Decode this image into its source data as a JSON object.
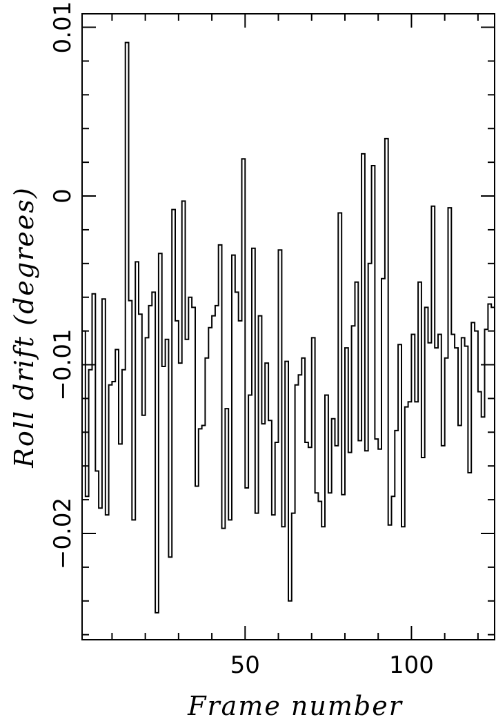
{
  "chart_data": {
    "type": "line",
    "style": "step",
    "title": "",
    "xlabel": "Frame number",
    "ylabel": "Roll drift (degrees)",
    "xlim": [
      1,
      125
    ],
    "ylim": [
      -0.0263,
      0.0108
    ],
    "x_ticks": [
      50,
      100
    ],
    "x_tick_labels": [
      "50",
      "100"
    ],
    "y_ticks": [
      -0.02,
      -0.01,
      0,
      0.01
    ],
    "y_tick_labels": [
      "−0.02",
      "−0.01",
      "0",
      "0.01"
    ],
    "grid": false,
    "legend": "none",
    "x_start": 1,
    "x_step": 1,
    "values": [
      -0.008,
      -0.0178,
      -0.0103,
      -0.0058,
      -0.0163,
      -0.0185,
      -0.0061,
      -0.0189,
      -0.0112,
      -0.011,
      -0.0091,
      -0.0147,
      -0.0103,
      0.0091,
      -0.0062,
      -0.0192,
      -0.0039,
      -0.007,
      -0.013,
      -0.0084,
      -0.0065,
      -0.0057,
      -0.0247,
      -0.0034,
      -0.0101,
      -0.0085,
      -0.0214,
      -0.0008,
      -0.0074,
      -0.0099,
      -0.0003,
      -0.0085,
      -0.006,
      -0.0066,
      -0.0172,
      -0.0138,
      -0.0136,
      -0.0096,
      -0.0078,
      -0.0071,
      -0.0065,
      -0.0029,
      -0.0197,
      -0.0126,
      -0.0192,
      -0.0035,
      -0.0057,
      -0.0074,
      0.0022,
      -0.0173,
      -0.0118,
      -0.0031,
      -0.0188,
      -0.0071,
      -0.0135,
      -0.0099,
      -0.0133,
      -0.0189,
      -0.0146,
      -0.0032,
      -0.0196,
      -0.0098,
      -0.024,
      -0.0188,
      -0.0112,
      -0.0106,
      -0.0096,
      -0.0146,
      -0.0149,
      -0.0084,
      -0.0176,
      -0.0181,
      -0.0196,
      -0.0118,
      -0.0176,
      -0.0132,
      -0.0148,
      -0.001,
      -0.0177,
      -0.009,
      -0.0152,
      -0.0077,
      -0.0051,
      -0.0145,
      0.0025,
      -0.0151,
      -0.004,
      0.0018,
      -0.0144,
      -0.015,
      -0.0049,
      0.0034,
      -0.0195,
      -0.0178,
      -0.0139,
      -0.0088,
      -0.0196,
      -0.0125,
      -0.0122,
      -0.0082,
      -0.0122,
      -0.0051,
      -0.0155,
      -0.0066,
      -0.0087,
      -0.0006,
      -0.009,
      -0.0082,
      -0.0148,
      -0.0096,
      -0.0007,
      -0.0082,
      -0.009,
      -0.0136,
      -0.0084,
      -0.0089,
      -0.0164,
      -0.0075,
      -0.008,
      -0.0116,
      -0.0131,
      -0.0079,
      -0.0064,
      -0.0066,
      -0.0065
    ]
  }
}
